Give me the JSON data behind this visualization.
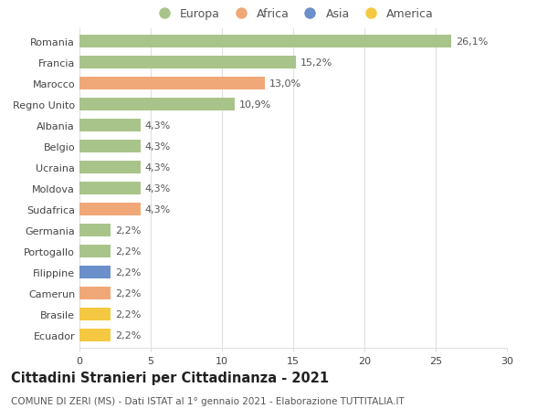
{
  "categories": [
    "Romania",
    "Francia",
    "Marocco",
    "Regno Unito",
    "Albania",
    "Belgio",
    "Ucraina",
    "Moldova",
    "Sudafrica",
    "Germania",
    "Portogallo",
    "Filippine",
    "Camerun",
    "Brasile",
    "Ecuador"
  ],
  "values": [
    26.1,
    15.2,
    13.0,
    10.9,
    4.3,
    4.3,
    4.3,
    4.3,
    4.3,
    2.2,
    2.2,
    2.2,
    2.2,
    2.2,
    2.2
  ],
  "labels": [
    "26,1%",
    "15,2%",
    "13,0%",
    "10,9%",
    "4,3%",
    "4,3%",
    "4,3%",
    "4,3%",
    "4,3%",
    "2,2%",
    "2,2%",
    "2,2%",
    "2,2%",
    "2,2%",
    "2,2%"
  ],
  "colors": [
    "#a8c48a",
    "#a8c48a",
    "#f0a878",
    "#a8c48a",
    "#a8c48a",
    "#a8c48a",
    "#a8c48a",
    "#a8c48a",
    "#f0a878",
    "#a8c48a",
    "#a8c48a",
    "#6a8fca",
    "#f0a878",
    "#f5c842",
    "#f5c842"
  ],
  "continent_labels": [
    "Europa",
    "Africa",
    "Asia",
    "America"
  ],
  "continent_colors": [
    "#a8c48a",
    "#f0a878",
    "#6a8fca",
    "#f5c842"
  ],
  "title": "Cittadini Stranieri per Cittadinanza - 2021",
  "subtitle": "COMUNE DI ZERI (MS) - Dati ISTAT al 1° gennaio 2021 - Elaborazione TUTTITALIA.IT",
  "xlim": [
    0,
    30
  ],
  "xticks": [
    0,
    5,
    10,
    15,
    20,
    25,
    30
  ],
  "background_color": "#ffffff",
  "grid_color": "#e0e0e0",
  "bar_height": 0.65,
  "label_fontsize": 8,
  "tick_fontsize": 8,
  "title_fontsize": 10.5,
  "subtitle_fontsize": 7.5
}
